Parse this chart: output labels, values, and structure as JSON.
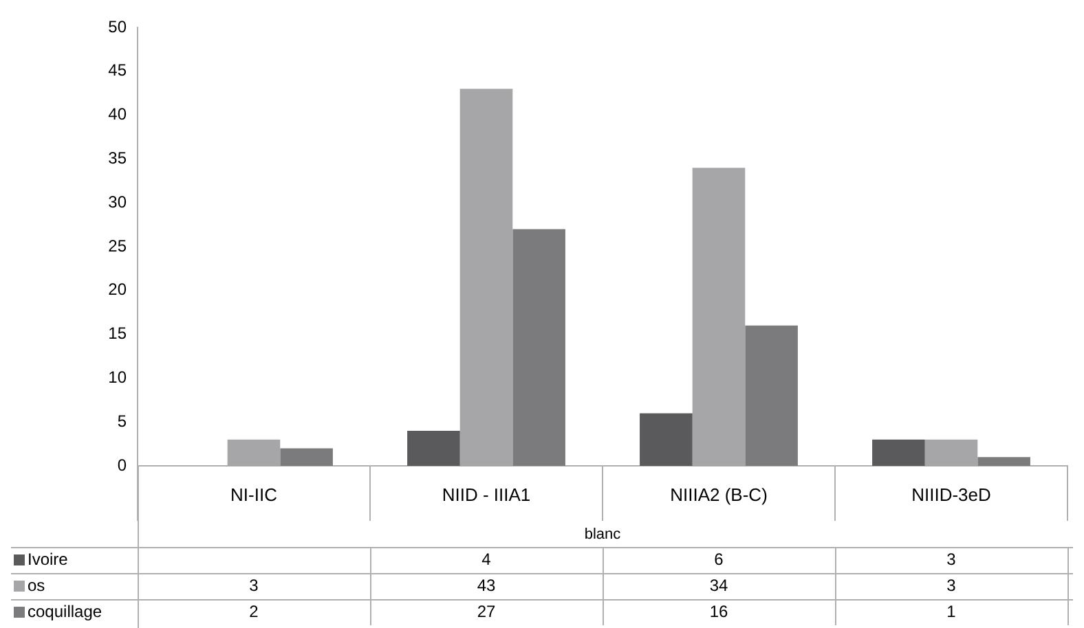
{
  "chart_data": {
    "type": "bar",
    "xlabel": "blanc",
    "categories": [
      "NI-IIC",
      "NIID - IIIA1",
      "NIIIA2 (B-C)",
      "NIIID-3eD"
    ],
    "series": [
      {
        "name": "Ivoire",
        "color": "#5a5a5c",
        "values": [
          null,
          4,
          6,
          3
        ]
      },
      {
        "name": "os",
        "color": "#a6a6a8",
        "values": [
          3,
          43,
          34,
          3
        ]
      },
      {
        "name": "coquillage",
        "color": "#7b7b7e",
        "values": [
          2,
          27,
          16,
          1
        ]
      }
    ],
    "ylim": [
      0,
      50
    ],
    "yticks": [
      0,
      5,
      10,
      15,
      20,
      25,
      30,
      35,
      40,
      45,
      50
    ],
    "grid": false,
    "legend": "bottom left",
    "data_labels": true
  }
}
